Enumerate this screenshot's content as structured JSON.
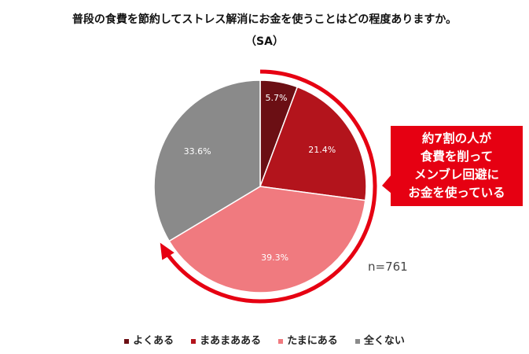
{
  "chart_data": {
    "type": "pie",
    "title": "普段の食費を節約してストレス解消にお金を使うことはどの程度ありますか。",
    "subtitle": "（SA）",
    "categories": [
      "よくある",
      "まあまあある",
      "たまにある",
      "全くない"
    ],
    "values": [
      5.7,
      21.4,
      39.3,
      33.6
    ],
    "labels": [
      "5.7%",
      "21.4%",
      "39.3%",
      "33.6%"
    ],
    "colors": [
      "#6b0f14",
      "#b3141c",
      "#f07a7f",
      "#8a8a8a"
    ],
    "legend_position": "bottom",
    "annotation": [
      "約7割の人が",
      "食費を削って",
      "メンブレ回避に",
      "お金を使っている"
    ],
    "accent_color": "#e60012",
    "n_label": "n=761"
  }
}
